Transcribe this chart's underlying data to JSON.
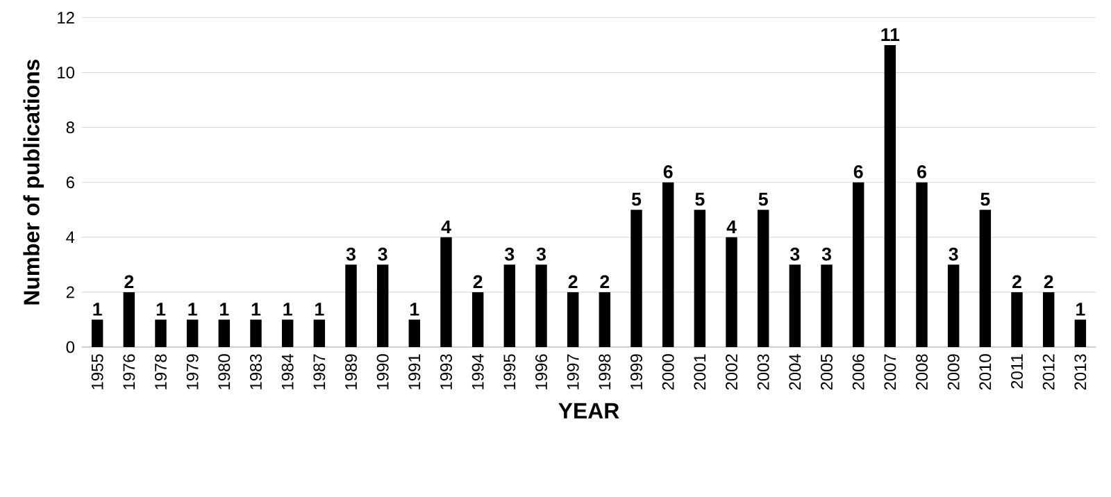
{
  "chart_data": {
    "type": "bar",
    "xlabel": "YEAR",
    "ylabel": "Number of publications",
    "categories": [
      "1955",
      "1976",
      "1978",
      "1979",
      "1980",
      "1983",
      "1984",
      "1987",
      "1989",
      "1990",
      "1991",
      "1993",
      "1994",
      "1995",
      "1996",
      "1997",
      "1998",
      "1999",
      "2000",
      "2001",
      "2002",
      "2003",
      "2004",
      "2005",
      "2006",
      "2007",
      "2008",
      "2009",
      "2010",
      "2011",
      "2012",
      "2013"
    ],
    "values": [
      1,
      2,
      1,
      1,
      1,
      1,
      1,
      1,
      3,
      3,
      1,
      4,
      2,
      3,
      3,
      2,
      2,
      5,
      6,
      5,
      4,
      5,
      3,
      3,
      6,
      11,
      6,
      3,
      5,
      2,
      2,
      1
    ],
    "color": "#000000",
    "ylim": [
      0,
      12
    ],
    "yticks": [
      0,
      2,
      4,
      6,
      8,
      10,
      12
    ],
    "grid": "y",
    "data_labels": true
  }
}
